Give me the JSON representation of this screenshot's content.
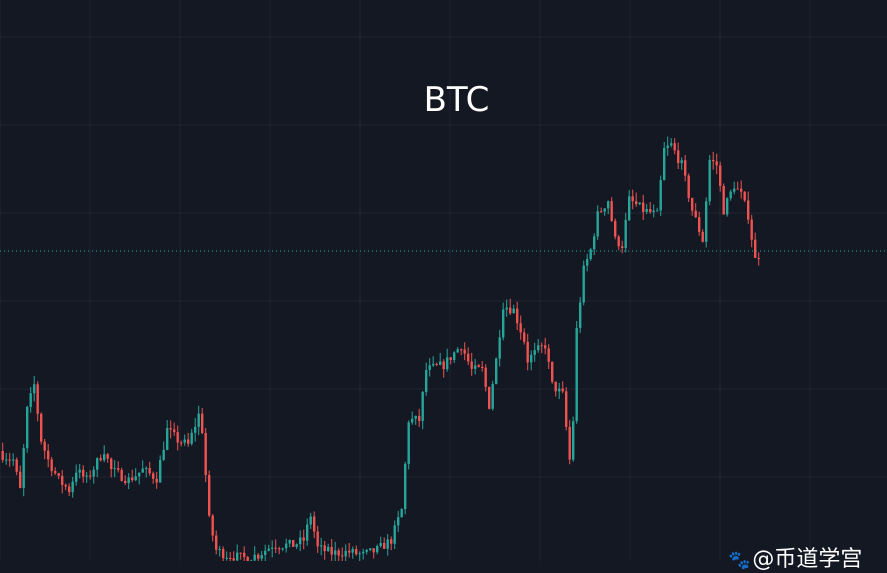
{
  "chart_data": {
    "type": "candlestick",
    "title": "BTC",
    "xlabel": "",
    "ylabel": "",
    "grid": true,
    "colors": {
      "background": "#141823",
      "up": "#26a69a",
      "down": "#ef5350",
      "grid": "#1f2533",
      "last_price_line": "#26a69a"
    },
    "close_path": [
      [
        0,
        106
      ],
      [
        3,
        101
      ],
      [
        5,
        71
      ],
      [
        7,
        151
      ],
      [
        9,
        176
      ],
      [
        11,
        121
      ],
      [
        13,
        101
      ],
      [
        16,
        81
      ],
      [
        19,
        71
      ],
      [
        21,
        91
      ],
      [
        24,
        81
      ],
      [
        29,
        111
      ],
      [
        31,
        91
      ],
      [
        36,
        81
      ],
      [
        40,
        91
      ],
      [
        44,
        83
      ],
      [
        47,
        131
      ],
      [
        50,
        121
      ],
      [
        53,
        116
      ],
      [
        56,
        146
      ],
      [
        57,
        131
      ],
      [
        59,
        41
      ],
      [
        61,
        11
      ],
      [
        64,
        6
      ],
      [
        69,
        3
      ],
      [
        73,
        6
      ],
      [
        77,
        16
      ],
      [
        83,
        16
      ],
      [
        86,
        21
      ],
      [
        88,
        46
      ],
      [
        90,
        13
      ],
      [
        94,
        8
      ],
      [
        99,
        9
      ],
      [
        103,
        6
      ],
      [
        107,
        11
      ],
      [
        111,
        21
      ],
      [
        114,
        51
      ],
      [
        116,
        141
      ],
      [
        119,
        141
      ],
      [
        121,
        191
      ],
      [
        126,
        196
      ],
      [
        131,
        216
      ],
      [
        134,
        191
      ],
      [
        137,
        191
      ],
      [
        139,
        156
      ],
      [
        141,
        201
      ],
      [
        143,
        256
      ],
      [
        146,
        251
      ],
      [
        149,
        221
      ],
      [
        150,
        201
      ],
      [
        153,
        211
      ],
      [
        155,
        216
      ],
      [
        157,
        176
      ],
      [
        160,
        166
      ],
      [
        162,
        101
      ],
      [
        163,
        141
      ],
      [
        164,
        231
      ],
      [
        166,
        291
      ],
      [
        168,
        311
      ],
      [
        170,
        346
      ],
      [
        173,
        361
      ],
      [
        175,
        321
      ],
      [
        177,
        316
      ],
      [
        179,
        361
      ],
      [
        183,
        351
      ],
      [
        187,
        346
      ],
      [
        189,
        411
      ],
      [
        191,
        416
      ],
      [
        194,
        396
      ],
      [
        197,
        351
      ],
      [
        200,
        321
      ],
      [
        202,
        401
      ],
      [
        204,
        396
      ],
      [
        206,
        351
      ],
      [
        209,
        376
      ],
      [
        211,
        366
      ],
      [
        213,
        346
      ],
      [
        215,
        301
      ],
      [
        216,
        306
      ]
    ]
  },
  "watermark": {
    "icon": "paw-icon",
    "text": "@币道学宫"
  }
}
